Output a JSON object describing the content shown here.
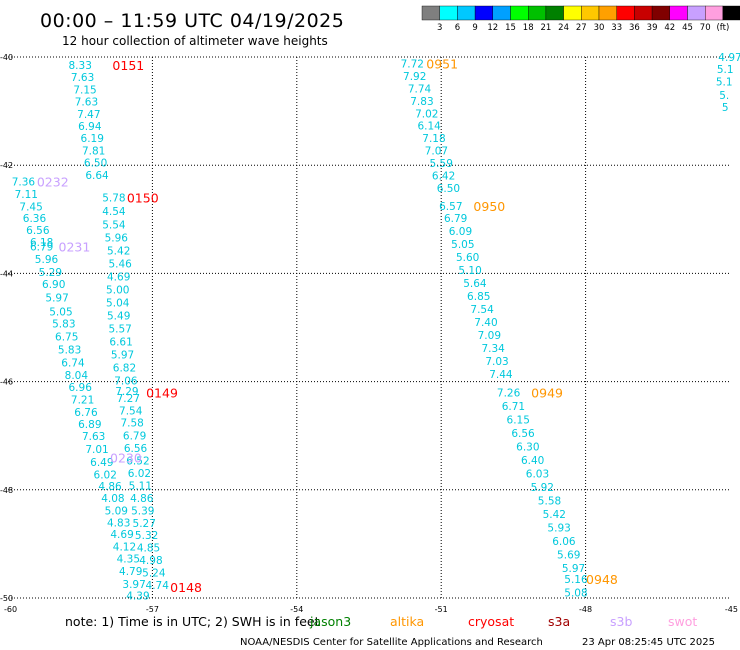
{
  "header": {
    "title": "00:00 – 11:59 UTC 04/19/2025",
    "subtitle": "12 hour collection of altimeter wave heights"
  },
  "color_scale": {
    "labels": [
      "3",
      "6",
      "9",
      "12",
      "15",
      "18",
      "21",
      "24",
      "27",
      "30",
      "33",
      "36",
      "39",
      "42",
      "45",
      "70",
      "(ft)"
    ],
    "colors": [
      "#7f7f7f",
      "#00ffff",
      "#00c8ff",
      "#0000ff",
      "#00a0ff",
      "#00ff00",
      "#00c000",
      "#008000",
      "#ffff00",
      "#ffc800",
      "#ffa000",
      "#ff0000",
      "#c80000",
      "#800000",
      "#ff00ff",
      "#c8a0ff",
      "#ff9fdf",
      "#000000"
    ]
  },
  "map": {
    "lon_range": [
      -60,
      -45
    ],
    "lat_range": [
      -50,
      -40
    ],
    "x_tick_labels": [
      "-60",
      "-57",
      "-54",
      "-51",
      "-48",
      "-45"
    ],
    "y_tick_labels": [
      "-40",
      "-42",
      "-44",
      "-46",
      "-48",
      "-50"
    ],
    "wave_color": "#00c8dc"
  },
  "tracks": [
    {
      "color": "#00c8dc",
      "points": [
        {
          "lon": -58.5,
          "lat": -40.15,
          "v": "8.33"
        },
        {
          "lon": -58.45,
          "lat": -40.37,
          "v": "7.63"
        },
        {
          "lon": -58.4,
          "lat": -40.6,
          "v": "7.15"
        },
        {
          "lon": -58.37,
          "lat": -40.82,
          "v": "7.63"
        },
        {
          "lon": -58.32,
          "lat": -41.05,
          "v": "7.47"
        },
        {
          "lon": -58.3,
          "lat": -41.28,
          "v": "6.94"
        },
        {
          "lon": -58.25,
          "lat": -41.5,
          "v": "6.19"
        },
        {
          "lon": -58.22,
          "lat": -41.73,
          "v": "7.81"
        },
        {
          "lon": -58.18,
          "lat": -41.95,
          "v": "6.50"
        },
        {
          "lon": -58.15,
          "lat": -42.18,
          "v": "6.64"
        }
      ]
    },
    {
      "color": "#00c8dc",
      "points": [
        {
          "lon": -59.68,
          "lat": -42.3,
          "v": "7.36"
        },
        {
          "lon": -59.62,
          "lat": -42.53,
          "v": "7.11"
        },
        {
          "lon": -59.52,
          "lat": -42.76,
          "v": "7.45"
        },
        {
          "lon": -59.45,
          "lat": -42.98,
          "v": "6.36"
        },
        {
          "lon": -59.38,
          "lat": -43.2,
          "v": "6.56"
        },
        {
          "lon": -59.3,
          "lat": -43.42,
          "v": "6.18"
        },
        {
          "lon": -59.3,
          "lat": -43.5,
          "v": "6.79"
        },
        {
          "lon": -59.2,
          "lat": -43.73,
          "v": "5.96"
        },
        {
          "lon": -59.12,
          "lat": -43.97,
          "v": "5.29"
        },
        {
          "lon": -59.05,
          "lat": -44.2,
          "v": "6.90"
        },
        {
          "lon": -58.98,
          "lat": -44.45,
          "v": "5.97"
        },
        {
          "lon": -58.9,
          "lat": -44.7,
          "v": "5.05"
        },
        {
          "lon": -58.84,
          "lat": -44.93,
          "v": "5.83"
        },
        {
          "lon": -58.78,
          "lat": -45.17,
          "v": "6.75"
        },
        {
          "lon": -58.72,
          "lat": -45.41,
          "v": "5.83"
        },
        {
          "lon": -58.65,
          "lat": -45.65,
          "v": "6.74"
        },
        {
          "lon": -58.58,
          "lat": -45.88,
          "v": "8.04"
        },
        {
          "lon": -58.5,
          "lat": -46.1,
          "v": "6.96"
        },
        {
          "lon": -58.45,
          "lat": -46.33,
          "v": "7.21"
        },
        {
          "lon": -58.38,
          "lat": -46.56,
          "v": "6.76"
        },
        {
          "lon": -58.3,
          "lat": -46.78,
          "v": "6.89"
        },
        {
          "lon": -58.22,
          "lat": -47.01,
          "v": "7.63"
        },
        {
          "lon": -58.15,
          "lat": -47.25,
          "v": "7.01"
        },
        {
          "lon": -58.05,
          "lat": -47.49,
          "v": "6.49"
        },
        {
          "lon": -57.98,
          "lat": -47.72,
          "v": "6.02"
        },
        {
          "lon": -57.88,
          "lat": -47.93,
          "v": "4.86"
        },
        {
          "lon": -57.82,
          "lat": -48.15,
          "v": "4.08"
        },
        {
          "lon": -57.75,
          "lat": -48.38,
          "v": "5.09"
        },
        {
          "lon": -57.7,
          "lat": -48.6,
          "v": "4.83"
        },
        {
          "lon": -57.63,
          "lat": -48.82,
          "v": "4.69"
        },
        {
          "lon": -57.58,
          "lat": -49.05,
          "v": "4.12"
        },
        {
          "lon": -57.5,
          "lat": -49.27,
          "v": "4.35"
        },
        {
          "lon": -57.45,
          "lat": -49.5,
          "v": "4.79"
        },
        {
          "lon": -57.38,
          "lat": -49.74,
          "v": "3.97"
        },
        {
          "lon": -57.3,
          "lat": -49.95,
          "v": "4.39"
        }
      ]
    },
    {
      "color": "#00c8dc",
      "points": [
        {
          "lon": -57.8,
          "lat": -42.6,
          "v": "5.78"
        },
        {
          "lon": -57.8,
          "lat": -42.85,
          "v": "4.54"
        },
        {
          "lon": -57.8,
          "lat": -43.1,
          "v": "5.54"
        },
        {
          "lon": -57.75,
          "lat": -43.34,
          "v": "5.96"
        },
        {
          "lon": -57.7,
          "lat": -43.58,
          "v": "5.42"
        },
        {
          "lon": -57.67,
          "lat": -43.82,
          "v": "5.46"
        },
        {
          "lon": -57.7,
          "lat": -44.06,
          "v": "4.69"
        },
        {
          "lon": -57.72,
          "lat": -44.3,
          "v": "5.00"
        },
        {
          "lon": -57.72,
          "lat": -44.54,
          "v": "5.04"
        },
        {
          "lon": -57.7,
          "lat": -44.78,
          "v": "5.49"
        },
        {
          "lon": -57.67,
          "lat": -45.02,
          "v": "5.57"
        },
        {
          "lon": -57.65,
          "lat": -45.26,
          "v": "6.61"
        },
        {
          "lon": -57.62,
          "lat": -45.5,
          "v": "5.97"
        },
        {
          "lon": -57.58,
          "lat": -45.74,
          "v": "6.82"
        },
        {
          "lon": -57.55,
          "lat": -45.98,
          "v": "7.06"
        },
        {
          "lon": -57.53,
          "lat": -46.17,
          "v": "7.29"
        },
        {
          "lon": -57.5,
          "lat": -46.3,
          "v": "7.27"
        },
        {
          "lon": -57.45,
          "lat": -46.53,
          "v": "7.54"
        },
        {
          "lon": -57.42,
          "lat": -46.76,
          "v": "7.58"
        },
        {
          "lon": -57.37,
          "lat": -47.0,
          "v": "6.79"
        },
        {
          "lon": -57.35,
          "lat": -47.23,
          "v": "6.56"
        },
        {
          "lon": -57.3,
          "lat": -47.46,
          "v": "6.52"
        },
        {
          "lon": -57.27,
          "lat": -47.69,
          "v": "6.02"
        },
        {
          "lon": -57.25,
          "lat": -47.92,
          "v": "5.11"
        },
        {
          "lon": -57.22,
          "lat": -48.15,
          "v": "4.86"
        },
        {
          "lon": -57.2,
          "lat": -48.38,
          "v": "5.39"
        },
        {
          "lon": -57.17,
          "lat": -48.61,
          "v": "5.27"
        },
        {
          "lon": -57.12,
          "lat": -48.84,
          "v": "5.32"
        },
        {
          "lon": -57.08,
          "lat": -49.07,
          "v": "4.85"
        },
        {
          "lon": -57.03,
          "lat": -49.3,
          "v": "4.98"
        },
        {
          "lon": -56.97,
          "lat": -49.53,
          "v": "5.24"
        },
        {
          "lon": -56.9,
          "lat": -49.76,
          "v": "4.74"
        }
      ]
    },
    {
      "color": "#00c8dc",
      "points": [
        {
          "lon": -51.6,
          "lat": -40.12,
          "v": "7.72"
        },
        {
          "lon": -51.55,
          "lat": -40.35,
          "v": "7.92"
        },
        {
          "lon": -51.45,
          "lat": -40.58,
          "v": "7.74"
        },
        {
          "lon": -51.4,
          "lat": -40.81,
          "v": "7.83"
        },
        {
          "lon": -51.3,
          "lat": -41.04,
          "v": "7.02"
        },
        {
          "lon": -51.25,
          "lat": -41.27,
          "v": "6.14"
        },
        {
          "lon": -51.15,
          "lat": -41.5,
          "v": "7.18"
        },
        {
          "lon": -51.1,
          "lat": -41.73,
          "v": "7.07"
        },
        {
          "lon": -51.0,
          "lat": -41.96,
          "v": "5.59"
        },
        {
          "lon": -50.95,
          "lat": -42.19,
          "v": "6.42"
        },
        {
          "lon": -50.85,
          "lat": -42.42,
          "v": "6.50"
        },
        {
          "lon": -50.8,
          "lat": -42.75,
          "v": "6.57"
        },
        {
          "lon": -50.7,
          "lat": -42.98,
          "v": "6.79"
        },
        {
          "lon": -50.6,
          "lat": -43.22,
          "v": "6.09"
        },
        {
          "lon": -50.55,
          "lat": -43.46,
          "v": "5.05"
        },
        {
          "lon": -50.45,
          "lat": -43.7,
          "v": "5.60"
        },
        {
          "lon": -50.4,
          "lat": -43.94,
          "v": "5.10"
        },
        {
          "lon": -50.3,
          "lat": -44.18,
          "v": "5.64"
        },
        {
          "lon": -50.22,
          "lat": -44.42,
          "v": "6.85"
        },
        {
          "lon": -50.15,
          "lat": -44.66,
          "v": "7.54"
        },
        {
          "lon": -50.07,
          "lat": -44.9,
          "v": "7.40"
        },
        {
          "lon": -50.0,
          "lat": -45.14,
          "v": "7.09"
        },
        {
          "lon": -49.92,
          "lat": -45.38,
          "v": "7.34"
        },
        {
          "lon": -49.84,
          "lat": -45.62,
          "v": "7.03"
        },
        {
          "lon": -49.76,
          "lat": -45.86,
          "v": "7.44"
        },
        {
          "lon": -49.6,
          "lat": -46.2,
          "v": "7.26"
        },
        {
          "lon": -49.5,
          "lat": -46.45,
          "v": "6.71"
        },
        {
          "lon": -49.4,
          "lat": -46.7,
          "v": "6.15"
        },
        {
          "lon": -49.3,
          "lat": -46.95,
          "v": "6.56"
        },
        {
          "lon": -49.2,
          "lat": -47.2,
          "v": "6.30"
        },
        {
          "lon": -49.1,
          "lat": -47.45,
          "v": "6.40"
        },
        {
          "lon": -49.0,
          "lat": -47.7,
          "v": "6.03"
        },
        {
          "lon": -48.9,
          "lat": -47.95,
          "v": "5.92"
        },
        {
          "lon": -48.75,
          "lat": -48.2,
          "v": "5.58"
        },
        {
          "lon": -48.65,
          "lat": -48.45,
          "v": "5.42"
        },
        {
          "lon": -48.55,
          "lat": -48.7,
          "v": "5.93"
        },
        {
          "lon": -48.45,
          "lat": -48.95,
          "v": "6.06"
        },
        {
          "lon": -48.35,
          "lat": -49.2,
          "v": "5.69"
        },
        {
          "lon": -48.25,
          "lat": -49.45,
          "v": "5.97"
        },
        {
          "lon": -48.2,
          "lat": -49.65,
          "v": "5.16"
        },
        {
          "lon": -48.2,
          "lat": -49.9,
          "v": "5.08"
        }
      ]
    },
    {
      "color": "#00c8dc",
      "points": [
        {
          "lon": -45.0,
          "lat": -40.0,
          "v": "4.97"
        },
        {
          "lon": -45.1,
          "lat": -40.22,
          "v": "5.1"
        },
        {
          "lon": -45.12,
          "lat": -40.45,
          "v": "5.1"
        },
        {
          "lon": -45.12,
          "lat": -40.7,
          "v": "5."
        },
        {
          "lon": -45.1,
          "lat": -40.92,
          "v": "5"
        }
      ]
    }
  ],
  "time_labels": [
    {
      "lon": -57.5,
      "lat": -40.15,
      "t": "0151",
      "color": "#ff0000"
    },
    {
      "lon": -57.2,
      "lat": -42.6,
      "t": "0150",
      "color": "#ff0000"
    },
    {
      "lon": -56.8,
      "lat": -46.2,
      "t": "0149",
      "color": "#ff0000"
    },
    {
      "lon": -56.3,
      "lat": -49.8,
      "t": "0148",
      "color": "#ff0000"
    },
    {
      "lon": -59.07,
      "lat": -42.3,
      "t": "0232",
      "color": "#c8a0ff"
    },
    {
      "lon": -58.62,
      "lat": -43.5,
      "t": "0231",
      "color": "#c8a0ff"
    },
    {
      "lon": -57.55,
      "lat": -47.4,
      "t": "0230",
      "color": "#c8a0ff"
    },
    {
      "lon": -50.98,
      "lat": -40.12,
      "t": "0951",
      "color": "#ff9600"
    },
    {
      "lon": -50.0,
      "lat": -42.75,
      "t": "0950",
      "color": "#ff9600"
    },
    {
      "lon": -48.8,
      "lat": -46.2,
      "t": "0949",
      "color": "#ff9600"
    },
    {
      "lon": -47.66,
      "lat": -49.65,
      "t": "0948",
      "color": "#ff9600"
    }
  ],
  "footer": {
    "note": "note:  1) Time is in UTC;  2) SWH is in feet",
    "satellites": [
      {
        "name": "jason3",
        "color": "#008000"
      },
      {
        "name": "altika",
        "color": "#ff9600"
      },
      {
        "name": "cryosat",
        "color": "#ff0000"
      },
      {
        "name": "s3a",
        "color": "#a00000"
      },
      {
        "name": "s3b",
        "color": "#c8a0ff"
      },
      {
        "name": "swot",
        "color": "#ff9fdf"
      }
    ],
    "credit": "NOAA/NESDIS Center for Satellite Applications and Research",
    "timestamp": "23 Apr 08:25:45 UTC 2025"
  }
}
